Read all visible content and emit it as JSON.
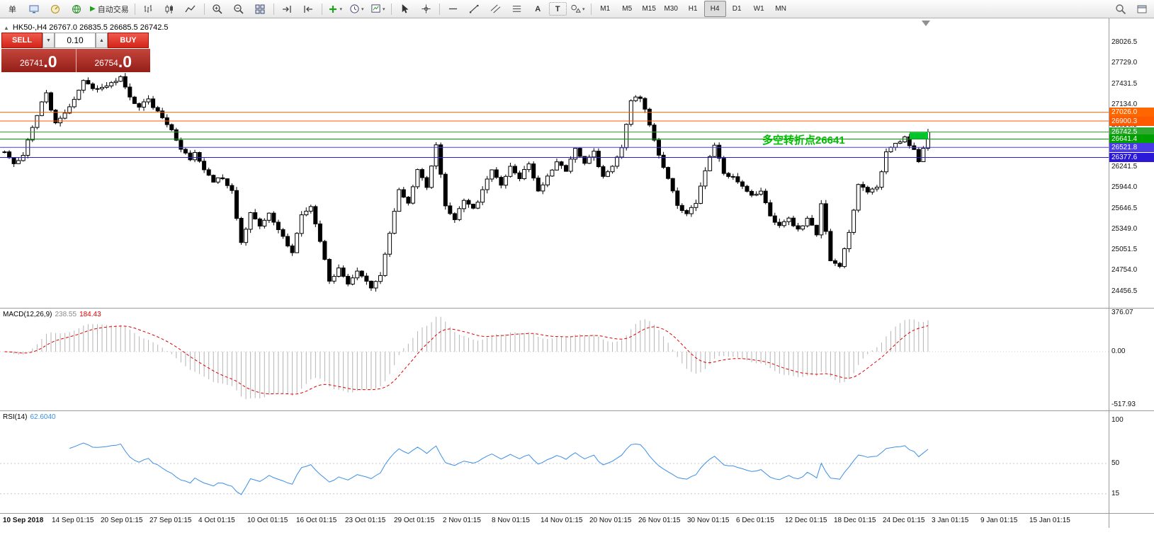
{
  "toolbar": {
    "order_button": "单",
    "auto_trading": "自动交易",
    "text_tool": "A",
    "label_tool": "T",
    "timeframes": [
      "M1",
      "M5",
      "M15",
      "M30",
      "H1",
      "H4",
      "D1",
      "W1",
      "MN"
    ],
    "active_timeframe": "H4"
  },
  "chart": {
    "title": "HK50-,H4 26767.0 26835.5 26685.5 26742.5",
    "annotation": "多空转折点26641",
    "annotation_color": "#00be00",
    "price_axis": {
      "ticks": [
        "28026.5",
        "27729.0",
        "27431.5",
        "27134.0",
        "26836.5",
        "26539.0",
        "26241.5",
        "25944.0",
        "25646.5",
        "25349.0",
        "25051.5",
        "24754.0",
        "24456.5"
      ]
    },
    "levels": [
      {
        "price": 27026.0,
        "label": "27026.0",
        "color": "#ff6600"
      },
      {
        "price": 26900.3,
        "label": "26900.3",
        "color": "#ff5a00"
      },
      {
        "price": 26742.5,
        "label": "26742.5",
        "color": "#2ea82e"
      },
      {
        "price": 26641.4,
        "label": "26641.4",
        "color": "#00a000"
      },
      {
        "price": 26521.8,
        "label": "26521.8",
        "color": "#4a3ae8"
      },
      {
        "price": 26377.6,
        "label": "26377.6",
        "color": "#2a1ad8"
      }
    ],
    "current_marker": {
      "price": 26695,
      "color": "#00c42b"
    }
  },
  "trade_panel": {
    "sell_label": "SELL",
    "buy_label": "BUY",
    "volume": "0.10",
    "down_arrow": "▼",
    "up_arrow": "▲",
    "sell_price": "26741",
    "sell_frac": ".0",
    "buy_price": "26754",
    "buy_frac": ".0"
  },
  "indicators": {
    "macd": {
      "label": "MACD(12,26,9)",
      "value_main": "238.55",
      "value_signal": "184.43",
      "scale_top": "376.07",
      "scale_zero": "0.00",
      "scale_bottom": "-517.93"
    },
    "rsi": {
      "label": "RSI(14)",
      "value": "62.6040",
      "scale": [
        "100",
        "50",
        "15"
      ],
      "levels": [
        50,
        15
      ]
    }
  },
  "time_axis": [
    "10 Sep 2018",
    "14 Sep 01:15",
    "20 Sep 01:15",
    "27 Sep 01:15",
    "4 Oct 01:15",
    "10 Oct 01:15",
    "16 Oct 01:15",
    "23 Oct 01:15",
    "29 Oct 01:15",
    "2 Nov 01:15",
    "8 Nov 01:15",
    "14 Nov 01:15",
    "20 Nov 01:15",
    "26 Nov 01:15",
    "30 Nov 01:15",
    "6 Dec 01:15",
    "12 Dec 01:15",
    "18 Dec 01:15",
    "24 Dec 01:15",
    "3 Jan 01:15",
    "9 Jan 01:15",
    "15 Jan 01:15"
  ],
  "chart_data": {
    "type": "candlestick",
    "symbol": "HK50-",
    "period": "H4",
    "open": 26767.0,
    "high": 26835.5,
    "low": 26685.5,
    "close": 26742.5,
    "candle_count": 200,
    "price_range": [
      24456.5,
      28026.5
    ],
    "trend": [
      [
        0,
        26450
      ],
      [
        2,
        26280
      ],
      [
        4,
        26420
      ],
      [
        7,
        27000
      ],
      [
        9,
        27300
      ],
      [
        11,
        26850
      ],
      [
        14,
        27100
      ],
      [
        17,
        27460
      ],
      [
        20,
        27350
      ],
      [
        23,
        27430
      ],
      [
        25,
        27530
      ],
      [
        27,
        27250
      ],
      [
        29,
        27100
      ],
      [
        31,
        27200
      ],
      [
        34,
        26950
      ],
      [
        36,
        26750
      ],
      [
        38,
        26490
      ],
      [
        40,
        26340
      ],
      [
        41,
        26440
      ],
      [
        43,
        26190
      ],
      [
        45,
        26040
      ],
      [
        47,
        26090
      ],
      [
        49,
        25890
      ],
      [
        51,
        25170
      ],
      [
        53,
        25580
      ],
      [
        55,
        25380
      ],
      [
        57,
        25580
      ],
      [
        60,
        25230
      ],
      [
        62,
        25020
      ],
      [
        64,
        25560
      ],
      [
        66,
        25680
      ],
      [
        68,
        25170
      ],
      [
        70,
        24620
      ],
      [
        72,
        24770
      ],
      [
        74,
        24570
      ],
      [
        76,
        24720
      ],
      [
        79,
        24510
      ],
      [
        81,
        24670
      ],
      [
        83,
        25300
      ],
      [
        85,
        25890
      ],
      [
        87,
        25730
      ],
      [
        89,
        26190
      ],
      [
        91,
        25940
      ],
      [
        93,
        26540
      ],
      [
        95,
        25680
      ],
      [
        97,
        25480
      ],
      [
        99,
        25780
      ],
      [
        101,
        25630
      ],
      [
        103,
        25890
      ],
      [
        105,
        26190
      ],
      [
        107,
        25990
      ],
      [
        109,
        26240
      ],
      [
        111,
        26090
      ],
      [
        113,
        26290
      ],
      [
        115,
        25890
      ],
      [
        117,
        26090
      ],
      [
        119,
        26340
      ],
      [
        121,
        26190
      ],
      [
        123,
        26490
      ],
      [
        125,
        26290
      ],
      [
        127,
        26440
      ],
      [
        129,
        26090
      ],
      [
        131,
        26240
      ],
      [
        133,
        26490
      ],
      [
        135,
        27200
      ],
      [
        137,
        27250
      ],
      [
        139,
        26850
      ],
      [
        141,
        26390
      ],
      [
        143,
        26090
      ],
      [
        145,
        25680
      ],
      [
        147,
        25580
      ],
      [
        149,
        25730
      ],
      [
        151,
        26190
      ],
      [
        153,
        26540
      ],
      [
        155,
        26140
      ],
      [
        157,
        26090
      ],
      [
        159,
        25990
      ],
      [
        161,
        25830
      ],
      [
        163,
        25890
      ],
      [
        165,
        25530
      ],
      [
        167,
        25380
      ],
      [
        169,
        25480
      ],
      [
        171,
        25330
      ],
      [
        173,
        25480
      ],
      [
        175,
        25280
      ],
      [
        176,
        25730
      ],
      [
        178,
        24870
      ],
      [
        180,
        24820
      ],
      [
        182,
        25280
      ],
      [
        184,
        25990
      ],
      [
        186,
        25890
      ],
      [
        188,
        25940
      ],
      [
        190,
        26440
      ],
      [
        192,
        26600
      ],
      [
        194,
        26650
      ],
      [
        196,
        26490
      ],
      [
        197,
        26290
      ],
      [
        199,
        26742.5
      ]
    ]
  }
}
